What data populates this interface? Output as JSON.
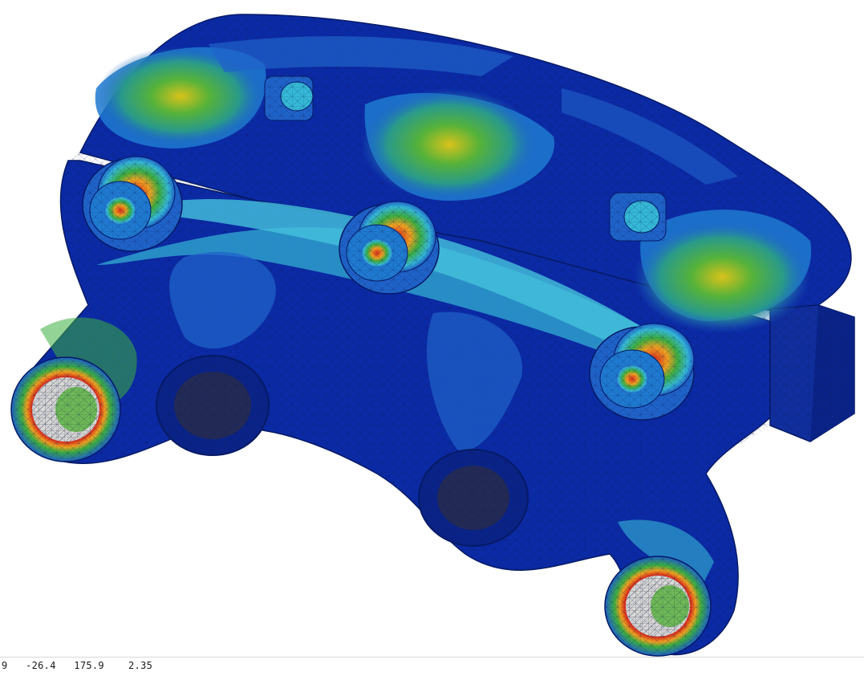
{
  "status": {
    "coordinate_readout": "9   -26.4   175.9    2.35"
  },
  "colors": {
    "background": "#ffffff",
    "contour_low": "#0b2aa6",
    "contour_low_mid": "#1f63c9",
    "contour_mid": "#35b8d6",
    "contour_mid_high": "#3cae3f",
    "contour_high": "#e8c51a",
    "contour_max": "#d8281a",
    "element_edge": "#0a1a55"
  }
}
